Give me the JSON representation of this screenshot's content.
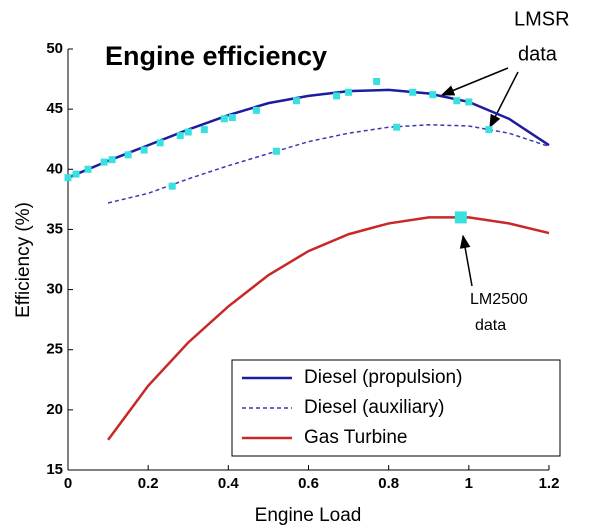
{
  "chart_data": {
    "type": "line",
    "title": "Engine efficiency",
    "x_label": "Engine Load",
    "y_label": "Efficiency (%)",
    "xlim": [
      0,
      1.2
    ],
    "ylim": [
      15,
      50
    ],
    "xticks": [
      0,
      0.2,
      0.4,
      0.6,
      0.8,
      1,
      1.2
    ],
    "yticks": [
      15,
      20,
      25,
      30,
      35,
      40,
      45,
      50
    ],
    "legend": "lower right",
    "series": [
      {
        "name": "Diesel (propulsion)",
        "color": "#1c1ca0",
        "dash": false,
        "x": [
          0,
          0.1,
          0.2,
          0.3,
          0.4,
          0.5,
          0.6,
          0.7,
          0.8,
          0.9,
          1.0,
          1.1,
          1.2
        ],
        "values": [
          39.3,
          40.7,
          42,
          43.3,
          44.5,
          45.5,
          46.1,
          46.5,
          46.6,
          46.3,
          45.6,
          44.2,
          42.0
        ]
      },
      {
        "name": "Diesel (auxiliary)",
        "color": "#3a3ab0",
        "dash": true,
        "x": [
          0.1,
          0.2,
          0.3,
          0.4,
          0.5,
          0.6,
          0.7,
          0.8,
          0.9,
          1.0,
          1.1,
          1.2
        ],
        "values": [
          37.2,
          38,
          39.2,
          40.3,
          41.3,
          42.3,
          43,
          43.5,
          43.7,
          43.6,
          43,
          41.9
        ]
      },
      {
        "name": "Gas Turbine",
        "color": "#c82828",
        "dash": false,
        "x": [
          0.1,
          0.2,
          0.3,
          0.4,
          0.5,
          0.6,
          0.7,
          0.8,
          0.9,
          1.0,
          1.1,
          1.2
        ],
        "values": [
          17.5,
          22,
          25.6,
          28.6,
          31.2,
          33.2,
          34.6,
          35.5,
          36,
          36,
          35.5,
          34.7
        ]
      }
    ],
    "scatter": [
      {
        "color": "#38e0e0",
        "x": [
          0,
          0.02,
          0.05,
          0.09,
          0.11,
          0.15,
          0.19,
          0.23,
          0.28,
          0.3,
          0.34,
          0.39,
          0.41,
          0.47,
          0.57,
          0.67,
          0.7,
          0.77,
          0.86,
          0.91,
          0.97,
          1.0,
          0.26,
          0.52,
          0.82,
          1.05
        ],
        "values": [
          39.3,
          39.6,
          40,
          40.6,
          40.8,
          41.2,
          41.6,
          42.2,
          42.8,
          43.1,
          43.3,
          44.2,
          44.3,
          44.9,
          45.7,
          46.1,
          46.4,
          47.3,
          46.4,
          46.2,
          45.7,
          45.6,
          38.6,
          41.5,
          43.5,
          43.3
        ]
      },
      {
        "color": "#38e0e0",
        "x": [
          0.98
        ],
        "values": [
          36
        ]
      }
    ],
    "annotations": [
      "LMSR",
      "data",
      "LM2500",
      "data"
    ]
  }
}
